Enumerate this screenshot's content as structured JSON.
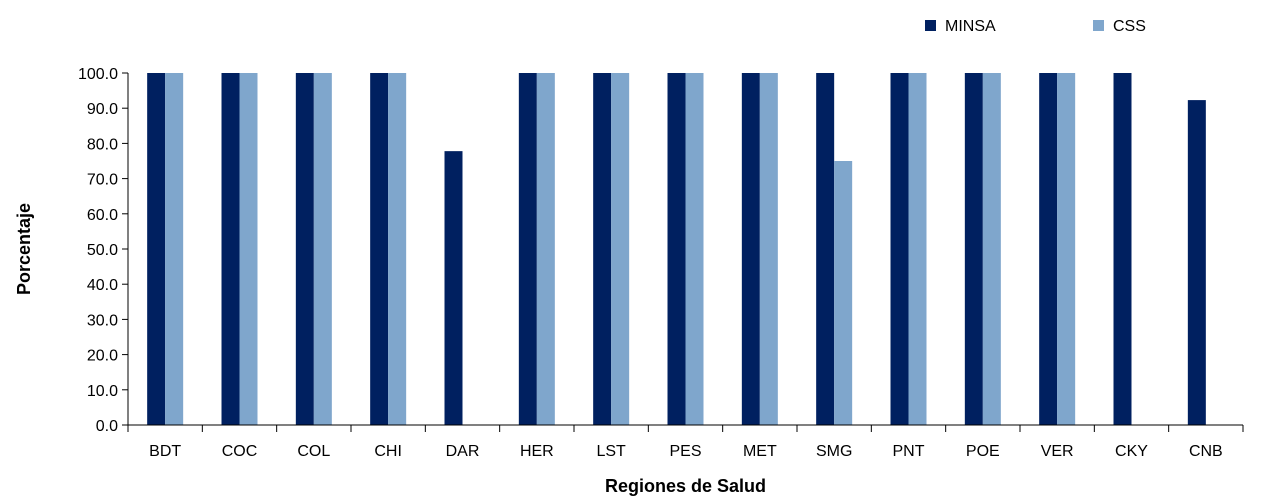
{
  "chart_data": {
    "type": "bar",
    "categories": [
      "BDT",
      "COC",
      "COL",
      "CHI",
      "DAR",
      "HER",
      "LST",
      "PES",
      "MET",
      "SMG",
      "PNT",
      "POE",
      "VER",
      "CKY",
      "CNB"
    ],
    "series": [
      {
        "name": "MINSA",
        "color": "#002060",
        "values": [
          100.0,
          100.0,
          100.0,
          100.0,
          77.8,
          100.0,
          100.0,
          100.0,
          100.0,
          100.0,
          100.0,
          100.0,
          100.0,
          100.0,
          92.3
        ]
      },
      {
        "name": "CSS",
        "color": "#7FA6CC",
        "values": [
          100.0,
          100.0,
          100.0,
          100.0,
          null,
          100.0,
          100.0,
          100.0,
          100.0,
          75.0,
          100.0,
          100.0,
          100.0,
          null,
          null
        ]
      }
    ],
    "title": "",
    "xlabel": "Regiones de Salud",
    "ylabel": "Porcentaje",
    "ylim": [
      0,
      100
    ],
    "yticks": [
      "0.0",
      "10.0",
      "20.0",
      "30.0",
      "40.0",
      "50.0",
      "60.0",
      "70.0",
      "80.0",
      "90.0",
      "100.0"
    ],
    "grid": false,
    "legend": "top-right"
  }
}
